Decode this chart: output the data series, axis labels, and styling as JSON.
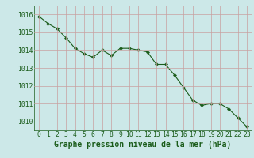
{
  "x": [
    0,
    1,
    2,
    3,
    4,
    5,
    6,
    7,
    8,
    9,
    10,
    11,
    12,
    13,
    14,
    15,
    16,
    17,
    18,
    19,
    20,
    21,
    22,
    23
  ],
  "y": [
    1015.9,
    1015.5,
    1015.2,
    1014.7,
    1014.1,
    1013.8,
    1013.6,
    1014.0,
    1013.7,
    1014.1,
    1014.1,
    1014.0,
    1013.9,
    1013.2,
    1013.2,
    1012.6,
    1011.9,
    1011.2,
    1010.9,
    1011.0,
    1011.0,
    1010.7,
    1010.2,
    1009.7
  ],
  "ylim": [
    1009.5,
    1016.5
  ],
  "yticks": [
    1010,
    1011,
    1012,
    1013,
    1014,
    1015,
    1016
  ],
  "xticks": [
    0,
    1,
    2,
    3,
    4,
    5,
    6,
    7,
    8,
    9,
    10,
    11,
    12,
    13,
    14,
    15,
    16,
    17,
    18,
    19,
    20,
    21,
    22,
    23
  ],
  "line_color": "#1a5c1a",
  "marker_color": "#1a5c1a",
  "bg_color": "#cce8e8",
  "grid_color": "#c8a0a0",
  "xlabel": "Graphe pression niveau de la mer (hPa)",
  "xlabel_color": "#1a5c1a",
  "tick_color": "#1a5c1a",
  "font_size_label": 7.0,
  "font_size_tick": 5.8
}
